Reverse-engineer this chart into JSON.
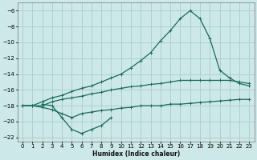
{
  "xlabel": "Humidex (Indice chaleur)",
  "bg_color": "#cce8e8",
  "grid_color": "#aacccc",
  "line_color": "#1a6b5a",
  "xlim": [
    -0.5,
    23.5
  ],
  "ylim": [
    -22.5,
    -5.0
  ],
  "xticks": [
    0,
    1,
    2,
    3,
    4,
    5,
    6,
    7,
    8,
    9,
    10,
    11,
    12,
    13,
    14,
    15,
    16,
    17,
    18,
    19,
    20,
    21,
    22,
    23
  ],
  "yticks": [
    -6,
    -8,
    -10,
    -12,
    -14,
    -16,
    -18,
    -20,
    -22
  ],
  "line1_x": [
    0,
    1,
    2,
    3,
    4,
    5,
    6,
    7,
    8,
    9,
    10,
    11,
    12,
    13,
    14,
    15,
    16,
    17,
    18,
    19,
    20,
    21,
    22,
    23
  ],
  "line1_y": [
    -18.0,
    -18.0,
    -17.5,
    -17.0,
    -16.7,
    -16.2,
    -15.8,
    -15.5,
    -15.0,
    -14.5,
    -14.0,
    -13.2,
    -12.3,
    -11.3,
    -9.8,
    -8.5,
    -7.0,
    -6.0,
    -7.0,
    -9.5,
    -13.5,
    -14.5,
    -15.2,
    -15.5
  ],
  "line2_x": [
    0,
    1,
    2,
    3,
    4,
    5,
    6,
    7,
    8,
    9,
    10,
    11,
    12,
    13,
    14,
    15,
    16,
    17,
    18,
    19,
    20,
    21,
    22,
    23
  ],
  "line2_y": [
    -18.0,
    -18.0,
    -18.0,
    -17.5,
    -17.2,
    -17.0,
    -16.8,
    -16.5,
    -16.3,
    -16.0,
    -15.8,
    -15.6,
    -15.5,
    -15.3,
    -15.2,
    -15.0,
    -14.8,
    -14.8,
    -14.8,
    -14.8,
    -14.8,
    -14.8,
    -15.0,
    -15.2
  ],
  "line3_x": [
    0,
    1,
    2,
    3,
    4,
    5,
    6,
    7,
    8,
    9,
    10,
    11,
    12,
    13,
    14,
    15,
    16,
    17,
    18,
    19,
    20,
    21,
    22,
    23
  ],
  "line3_y": [
    -18.0,
    -18.0,
    -18.2,
    -18.5,
    -19.0,
    -19.5,
    -19.0,
    -18.8,
    -18.6,
    -18.5,
    -18.3,
    -18.2,
    -18.0,
    -18.0,
    -18.0,
    -17.8,
    -17.8,
    -17.7,
    -17.6,
    -17.5,
    -17.4,
    -17.3,
    -17.2,
    -17.2
  ],
  "line4_x": [
    2,
    3,
    4,
    5,
    6,
    7,
    8,
    9
  ],
  "line4_y": [
    -17.8,
    -18.0,
    -19.5,
    -21.0,
    -21.5,
    -21.0,
    -20.5,
    -19.5
  ]
}
